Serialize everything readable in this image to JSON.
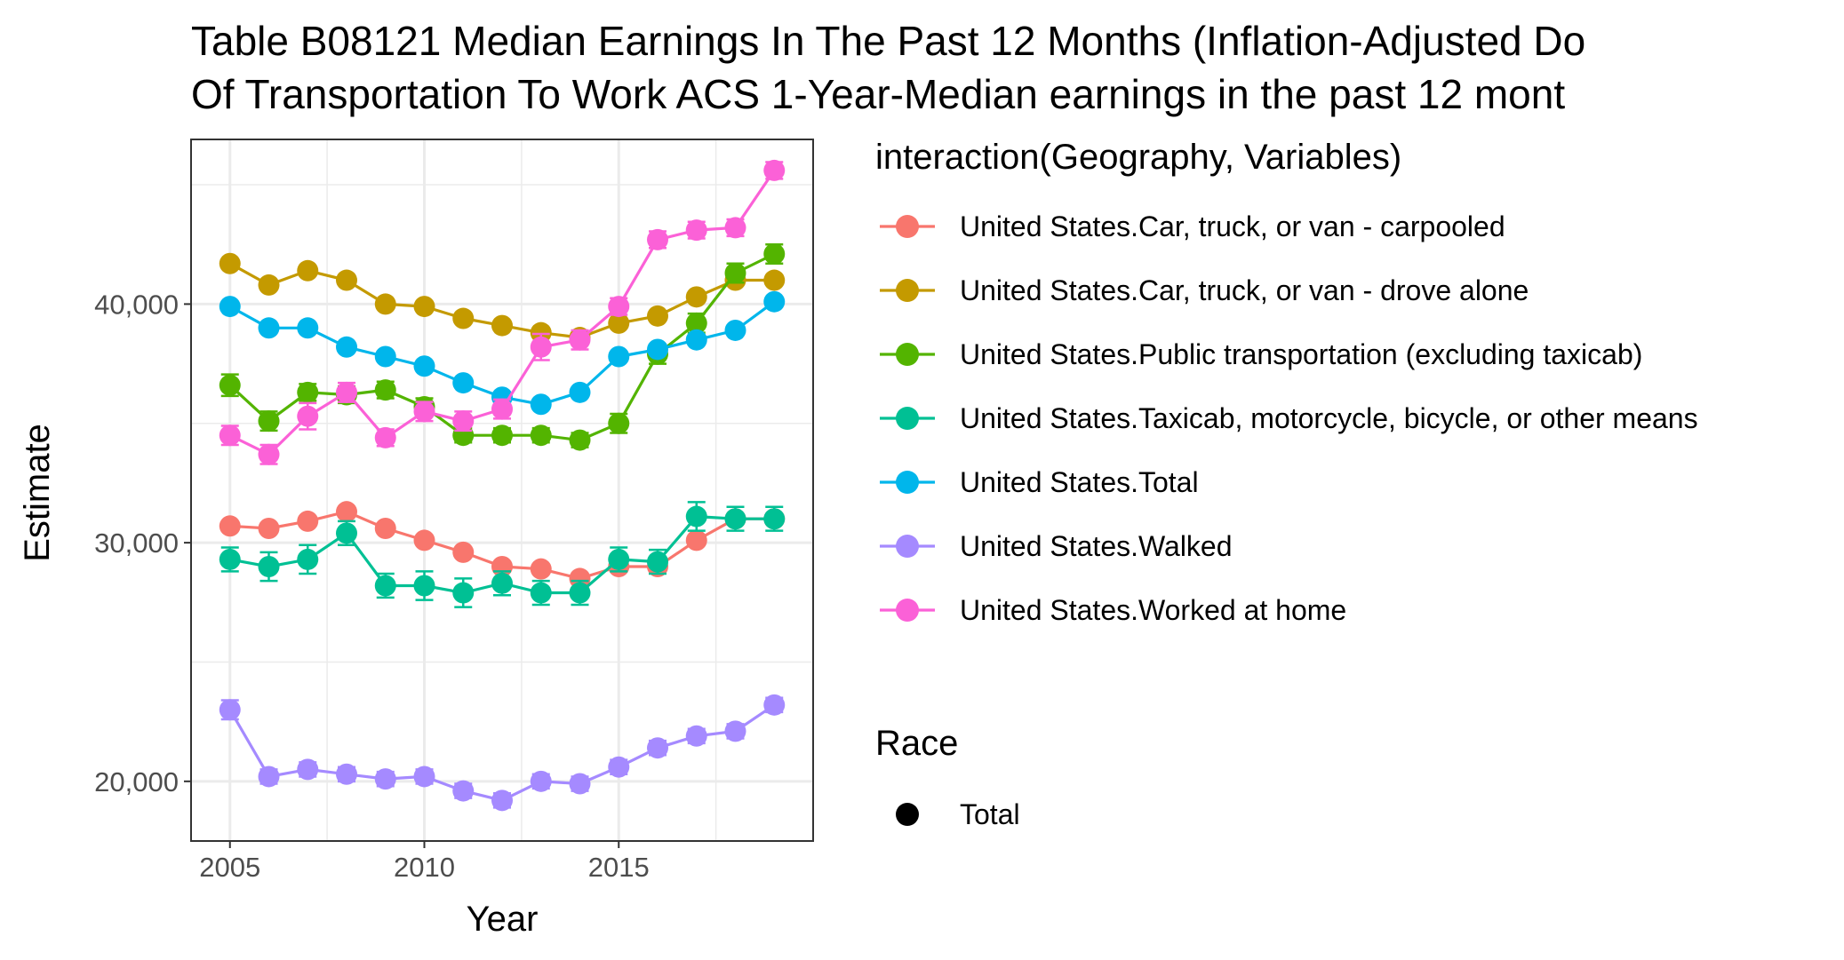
{
  "chart_data": {
    "type": "line",
    "title_line1": "Table B08121 Median Earnings In The Past 12 Months (Inflation-Adjusted Do",
    "title_line2": "Of Transportation To Work ACS 1-Year-Median earnings in the past 12 mont",
    "xlabel": "Year",
    "ylabel": "Estimate",
    "xlim": [
      2004.0,
      2020.0
    ],
    "ylim": [
      17500,
      46900
    ],
    "x_ticks": [
      2005,
      2010,
      2015
    ],
    "x_tick_labels": [
      "2005",
      "2010",
      "2015"
    ],
    "y_ticks": [
      20000,
      30000,
      40000
    ],
    "y_tick_labels": [
      "20,000",
      "30,000",
      "40,000"
    ],
    "y_minor_ticks": [
      25000,
      35000,
      45000
    ],
    "x_minor_ticks": [
      2007.5,
      2012.5,
      2017.5
    ],
    "grid": true,
    "legend_position": "right",
    "x": [
      2005,
      2006,
      2007,
      2008,
      2009,
      2010,
      2011,
      2012,
      2013,
      2014,
      2015,
      2016,
      2017,
      2018,
      2019
    ],
    "series": [
      {
        "name": "United States.Car, truck, or van - carpooled",
        "color": "#F8766D",
        "values": [
          30700,
          30600,
          30900,
          31300,
          30600,
          30100,
          29600,
          29000,
          28900,
          28500,
          29000,
          29000,
          30100,
          31000,
          31000
        ],
        "errors": [
          150,
          150,
          150,
          200,
          150,
          150,
          150,
          150,
          150,
          150,
          150,
          150,
          200,
          200,
          200
        ]
      },
      {
        "name": "United States.Car, truck, or van - drove alone",
        "color": "#C49A00",
        "values": [
          41700,
          40800,
          41400,
          41000,
          40000,
          39900,
          39400,
          39100,
          38800,
          38600,
          39200,
          39500,
          40300,
          41000,
          41000
        ],
        "errors": [
          100,
          100,
          100,
          100,
          100,
          100,
          100,
          100,
          100,
          100,
          100,
          100,
          100,
          100,
          100
        ]
      },
      {
        "name": "United States.Public transportation (excluding taxicab)",
        "color": "#53B400",
        "values": [
          36600,
          35100,
          36300,
          36200,
          36400,
          35700,
          34500,
          34500,
          34500,
          34300,
          35000,
          37900,
          39200,
          41300,
          42100
        ],
        "errors": [
          450,
          400,
          350,
          350,
          350,
          350,
          300,
          300,
          300,
          300,
          400,
          400,
          400,
          400,
          400
        ]
      },
      {
        "name": "United States.Taxicab, motorcycle, bicycle, or other means",
        "color": "#00C094",
        "values": [
          29300,
          29000,
          29300,
          30400,
          28200,
          28200,
          27900,
          28300,
          27900,
          27900,
          29300,
          29200,
          31100,
          31000,
          31000
        ],
        "errors": [
          500,
          600,
          600,
          500,
          500,
          600,
          600,
          500,
          500,
          500,
          500,
          500,
          600,
          500,
          500
        ]
      },
      {
        "name": "United States.Total",
        "color": "#00B6EB",
        "values": [
          39900,
          39000,
          39000,
          38200,
          37800,
          37400,
          36700,
          36100,
          35800,
          36300,
          37800,
          38100,
          38500,
          38900,
          40100
        ],
        "errors": [
          80,
          80,
          80,
          80,
          80,
          80,
          80,
          80,
          80,
          80,
          80,
          80,
          80,
          80,
          80
        ]
      },
      {
        "name": "United States.Walked",
        "color": "#A58AFF",
        "values": [
          23000,
          20200,
          20500,
          20300,
          20100,
          20200,
          19600,
          19200,
          20000,
          19900,
          20600,
          21400,
          21900,
          22100,
          23200
        ],
        "errors": [
          400,
          300,
          300,
          300,
          300,
          300,
          300,
          300,
          300,
          300,
          300,
          300,
          300,
          300,
          300
        ]
      },
      {
        "name": "United States.Worked at home",
        "color": "#FB61D7",
        "values": [
          34500,
          33700,
          35300,
          36300,
          34400,
          35500,
          35100,
          35600,
          38200,
          38500,
          39900,
          42700,
          43100,
          43200,
          45600
        ],
        "errors": [
          400,
          400,
          550,
          400,
          350,
          400,
          400,
          400,
          550,
          400,
          350,
          350,
          350,
          350,
          350
        ]
      }
    ],
    "legend": {
      "title": "interaction(Geography, Variables)",
      "shape_title": "Race",
      "shape_entries": [
        "Total"
      ]
    }
  }
}
